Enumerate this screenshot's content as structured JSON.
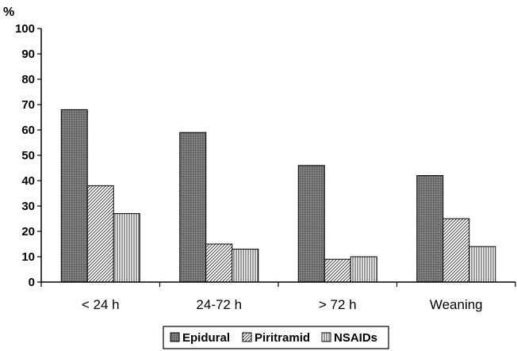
{
  "chart_data": {
    "type": "bar",
    "ylabel": "%",
    "xlabel": "",
    "ylim": [
      0,
      100
    ],
    "yticks": [
      0,
      10,
      20,
      30,
      40,
      50,
      60,
      70,
      80,
      90,
      100
    ],
    "grid": false,
    "legend_position": "bottom",
    "categories": [
      "< 24 h",
      "24-72 h",
      "> 72 h",
      "Weaning"
    ],
    "series": [
      {
        "name": "Epidural",
        "values": [
          68,
          59,
          46,
          42
        ],
        "color": "#707070",
        "pattern": "dots"
      },
      {
        "name": "Piritramid",
        "values": [
          38,
          15,
          9,
          25
        ],
        "color": "#ffffff",
        "pattern": "diagonal"
      },
      {
        "name": "NSAIDs",
        "values": [
          27,
          13,
          10,
          14
        ],
        "color": "#ffffff",
        "pattern": "vertical"
      }
    ]
  }
}
